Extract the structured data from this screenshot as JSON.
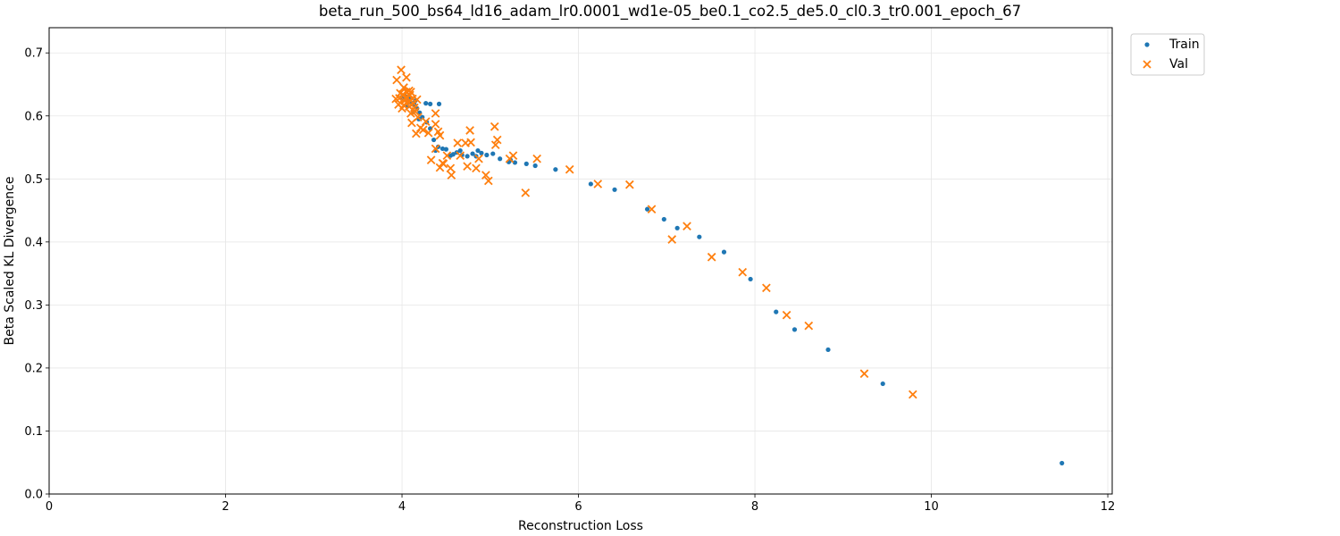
{
  "chart_data": {
    "type": "scatter",
    "title": "beta_run_500_bs64_ld16_adam_lr0.0001_wd1e-05_be0.1_co2.5_de5.0_cl0.3_tr0.001_epoch_67",
    "xlabel": "Reconstruction Loss",
    "ylabel": "Beta Scaled KL Divergence",
    "xlim": [
      0,
      12.05
    ],
    "ylim": [
      0,
      0.74
    ],
    "xticks": [
      0,
      2,
      4,
      6,
      8,
      10,
      12
    ],
    "yticks": [
      0.0,
      0.1,
      0.2,
      0.3,
      0.4,
      0.5,
      0.6,
      0.7
    ],
    "grid": true,
    "legend_position": "outside top-right",
    "series": [
      {
        "name": "Train",
        "marker": "dot",
        "color": "#1f77b4",
        "points": [
          [
            11.48,
            0.049
          ],
          [
            9.45,
            0.175
          ],
          [
            8.83,
            0.229
          ],
          [
            8.45,
            0.261
          ],
          [
            8.24,
            0.289
          ],
          [
            7.95,
            0.341
          ],
          [
            7.65,
            0.384
          ],
          [
            7.37,
            0.408
          ],
          [
            7.12,
            0.422
          ],
          [
            6.97,
            0.436
          ],
          [
            6.78,
            0.452
          ],
          [
            6.41,
            0.483
          ],
          [
            6.14,
            0.492
          ],
          [
            5.74,
            0.515
          ],
          [
            5.51,
            0.521
          ],
          [
            5.41,
            0.524
          ],
          [
            5.28,
            0.526
          ],
          [
            5.21,
            0.527
          ],
          [
            5.11,
            0.532
          ],
          [
            5.03,
            0.54
          ],
          [
            4.96,
            0.538
          ],
          [
            4.9,
            0.541
          ],
          [
            4.86,
            0.545
          ],
          [
            4.8,
            0.54
          ],
          [
            4.74,
            0.536
          ],
          [
            4.68,
            0.538
          ],
          [
            4.62,
            0.542
          ],
          [
            4.55,
            0.537
          ],
          [
            4.5,
            0.547
          ],
          [
            4.46,
            0.548
          ],
          [
            4.41,
            0.551
          ],
          [
            4.36,
            0.562
          ],
          [
            4.32,
            0.58
          ],
          [
            4.28,
            0.59
          ],
          [
            4.23,
            0.598
          ],
          [
            4.2,
            0.605
          ],
          [
            4.17,
            0.612
          ],
          [
            4.14,
            0.618
          ],
          [
            4.11,
            0.62
          ],
          [
            4.08,
            0.622
          ],
          [
            4.05,
            0.625
          ],
          [
            4.02,
            0.628
          ],
          [
            4.0,
            0.63
          ],
          [
            4.27,
            0.62
          ],
          [
            4.32,
            0.619
          ],
          [
            4.42,
            0.619
          ],
          [
            4.19,
            0.595
          ],
          [
            4.13,
            0.607
          ],
          [
            4.06,
            0.615
          ],
          [
            4.03,
            0.632
          ],
          [
            4.09,
            0.628
          ],
          [
            4.15,
            0.624
          ],
          [
            4.38,
            0.545
          ],
          [
            4.58,
            0.539
          ],
          [
            4.66,
            0.545
          ],
          [
            4.84,
            0.536
          ],
          [
            5.23,
            0.53
          ]
        ]
      },
      {
        "name": "Val",
        "marker": "x",
        "color": "#ff7f0e",
        "points": [
          [
            9.79,
            0.158
          ],
          [
            9.24,
            0.191
          ],
          [
            8.61,
            0.267
          ],
          [
            8.36,
            0.284
          ],
          [
            8.13,
            0.327
          ],
          [
            7.86,
            0.352
          ],
          [
            7.51,
            0.376
          ],
          [
            7.23,
            0.425
          ],
          [
            7.06,
            0.404
          ],
          [
            6.83,
            0.452
          ],
          [
            6.58,
            0.491
          ],
          [
            6.22,
            0.492
          ],
          [
            5.9,
            0.515
          ],
          [
            5.53,
            0.532
          ],
          [
            5.4,
            0.478
          ],
          [
            5.26,
            0.537
          ],
          [
            5.08,
            0.562
          ],
          [
            5.06,
            0.554
          ],
          [
            5.05,
            0.583
          ],
          [
            4.98,
            0.497
          ],
          [
            4.95,
            0.506
          ],
          [
            4.87,
            0.532
          ],
          [
            4.84,
            0.517
          ],
          [
            4.78,
            0.558
          ],
          [
            4.77,
            0.577
          ],
          [
            4.74,
            0.52
          ],
          [
            4.72,
            0.557
          ],
          [
            4.66,
            0.537
          ],
          [
            4.63,
            0.557
          ],
          [
            4.56,
            0.506
          ],
          [
            4.55,
            0.517
          ],
          [
            4.51,
            0.537
          ],
          [
            4.46,
            0.525
          ],
          [
            4.43,
            0.518
          ],
          [
            4.43,
            0.569
          ],
          [
            4.41,
            0.575
          ],
          [
            4.38,
            0.548
          ],
          [
            4.38,
            0.587
          ],
          [
            4.38,
            0.604
          ],
          [
            4.33,
            0.53
          ],
          [
            4.3,
            0.573
          ],
          [
            4.27,
            0.591
          ],
          [
            4.21,
            0.581
          ],
          [
            4.16,
            0.572
          ],
          [
            4.18,
            0.598
          ],
          [
            4.15,
            0.607
          ],
          [
            4.13,
            0.62
          ],
          [
            4.11,
            0.589
          ],
          [
            4.1,
            0.638
          ],
          [
            4.08,
            0.64
          ],
          [
            4.06,
            0.629
          ],
          [
            4.05,
            0.661
          ],
          [
            4.03,
            0.624
          ],
          [
            4.02,
            0.645
          ],
          [
            4.0,
            0.612
          ],
          [
            3.99,
            0.673
          ],
          [
            3.98,
            0.636
          ],
          [
            3.96,
            0.618
          ],
          [
            3.94,
            0.657
          ],
          [
            3.93,
            0.627
          ],
          [
            4.01,
            0.634
          ],
          [
            4.04,
            0.628
          ],
          [
            4.07,
            0.622
          ],
          [
            4.09,
            0.633
          ],
          [
            4.12,
            0.627
          ],
          [
            4.02,
            0.617
          ],
          [
            4.05,
            0.638
          ],
          [
            4.08,
            0.615
          ],
          [
            3.97,
            0.628
          ],
          [
            4.1,
            0.604
          ],
          [
            4.14,
            0.613
          ],
          [
            4.17,
            0.626
          ],
          [
            4.24,
            0.578
          ],
          [
            4.47,
            0.524
          ],
          [
            5.22,
            0.532
          ]
        ]
      }
    ]
  }
}
